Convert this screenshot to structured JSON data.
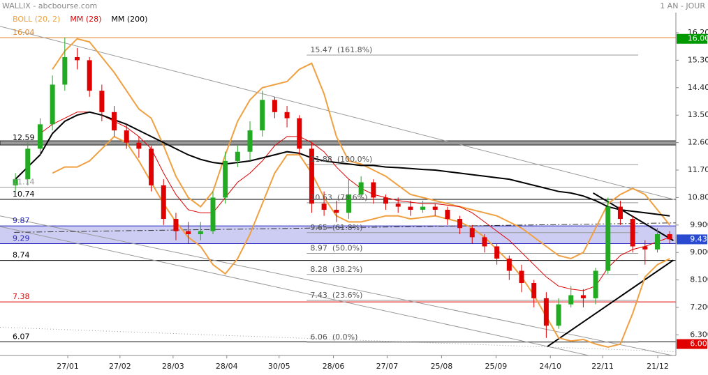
{
  "header": {
    "title": "WALLIX - abcbourse.com",
    "period": "1 AN - JOUR"
  },
  "chart_data": {
    "type": "candlestick",
    "xlim": [
      -1.25,
      53.5
    ],
    "ylim": [
      5.625,
      16.862
    ],
    "xticks": [
      {
        "value": 4.24,
        "label": "27/01"
      },
      {
        "value": 8.47,
        "label": "27/02"
      },
      {
        "value": 12.77,
        "label": "28/03"
      },
      {
        "value": 17.12,
        "label": "28/04"
      },
      {
        "value": 21.36,
        "label": "30/05"
      },
      {
        "value": 25.76,
        "label": "28/06"
      },
      {
        "value": 30.11,
        "label": "27/07"
      },
      {
        "value": 34.52,
        "label": "25/08"
      },
      {
        "value": 38.93,
        "label": "25/09"
      },
      {
        "value": 43.33,
        "label": "24/10"
      },
      {
        "value": 47.57,
        "label": "22/11"
      },
      {
        "value": 52.03,
        "label": "21/12"
      }
    ],
    "yticks": [
      {
        "value": 16.2,
        "label": "16.200"
      },
      {
        "value": 15.3,
        "label": "15.300"
      },
      {
        "value": 14.4,
        "label": "14.400"
      },
      {
        "value": 13.5,
        "label": "13.500"
      },
      {
        "value": 12.6,
        "label": "12.600"
      },
      {
        "value": 11.7,
        "label": "11.700"
      },
      {
        "value": 10.8,
        "label": "10.800"
      },
      {
        "value": 9.9,
        "label": "9.900"
      },
      {
        "value": 9.0,
        "label": "9.000"
      },
      {
        "value": 8.1,
        "label": "8.100"
      },
      {
        "value": 7.2,
        "label": "7.200"
      },
      {
        "value": 6.3,
        "label": "6.300"
      }
    ],
    "up_color": "#22aa22",
    "down_color": "#e00000",
    "open": [
      11.2,
      11.4,
      12.4,
      13.2,
      14.5,
      15.4,
      15.3,
      14.3,
      13.6,
      13.0,
      12.6,
      12.4,
      11.2,
      10.1,
      9.7,
      9.6,
      9.7,
      10.8,
      12.0,
      12.3,
      13.0,
      14.0,
      13.6,
      13.4,
      12.4,
      10.6,
      10.4,
      10.3,
      10.9,
      11.3,
      10.8,
      10.6,
      10.5,
      10.4,
      10.5,
      10.4,
      10.1,
      9.8,
      9.5,
      9.2,
      8.8,
      8.4,
      8.0,
      7.5,
      6.6,
      7.3,
      7.6,
      7.5,
      8.4,
      10.5,
      10.1,
      9.2,
      9.1,
      9.6
    ],
    "high": [
      11.6,
      12.6,
      13.4,
      14.8,
      16.04,
      15.7,
      15.4,
      14.5,
      13.8,
      13.2,
      12.8,
      12.5,
      11.4,
      10.3,
      10.0,
      10.0,
      11.0,
      12.3,
      12.5,
      13.3,
      14.3,
      14.1,
      13.8,
      13.5,
      12.6,
      11.0,
      10.7,
      11.4,
      11.5,
      11.4,
      10.9,
      10.8,
      10.7,
      10.7,
      10.6,
      10.5,
      10.2,
      9.9,
      9.6,
      9.3,
      8.9,
      8.6,
      8.1,
      7.7,
      7.5,
      7.9,
      7.8,
      8.5,
      10.8,
      10.7,
      10.2,
      9.4,
      9.8,
      9.7
    ],
    "low": [
      11.0,
      11.2,
      12.2,
      13.0,
      14.3,
      15.0,
      14.1,
      13.3,
      12.8,
      12.4,
      12.1,
      11.0,
      9.9,
      9.4,
      9.3,
      9.4,
      9.6,
      10.6,
      11.8,
      12.0,
      12.8,
      13.4,
      13.1,
      12.2,
      10.3,
      10.2,
      10.0,
      10.1,
      10.8,
      10.6,
      10.4,
      10.3,
      10.2,
      10.3,
      10.2,
      9.9,
      9.6,
      9.3,
      9.0,
      8.6,
      8.1,
      7.7,
      7.2,
      6.2,
      6.5,
      7.2,
      7.2,
      7.3,
      8.3,
      9.9,
      9.0,
      8.6,
      9.0,
      9.3
    ],
    "close": [
      11.4,
      12.4,
      13.2,
      14.5,
      15.4,
      15.3,
      14.3,
      13.6,
      13.0,
      12.6,
      12.4,
      11.2,
      10.1,
      9.7,
      9.6,
      9.7,
      10.8,
      12.0,
      12.3,
      13.0,
      14.0,
      13.6,
      13.4,
      12.4,
      10.6,
      10.4,
      10.3,
      10.9,
      11.3,
      10.8,
      10.6,
      10.5,
      10.4,
      10.5,
      10.4,
      10.1,
      9.8,
      9.5,
      9.2,
      8.8,
      8.4,
      8.0,
      7.5,
      6.6,
      7.3,
      7.6,
      7.5,
      8.4,
      10.5,
      10.1,
      9.2,
      9.1,
      9.6,
      9.43
    ],
    "series": [
      {
        "name": "BOLL (20, 2)",
        "color": "#f0a040",
        "upper": [
          null,
          null,
          null,
          15.0,
          15.6,
          16.0,
          15.9,
          15.4,
          14.9,
          14.3,
          13.7,
          13.4,
          12.5,
          11.5,
          10.8,
          10.5,
          11.0,
          12.2,
          13.3,
          14.0,
          14.4,
          14.5,
          14.6,
          15.0,
          15.2,
          14.2,
          12.8,
          12.0,
          11.9,
          11.7,
          11.5,
          11.2,
          10.9,
          10.8,
          10.7,
          10.6,
          10.5,
          10.4,
          10.3,
          10.2,
          10.0,
          9.8,
          9.5,
          9.2,
          8.9,
          8.8,
          9.0,
          9.8,
          10.6,
          10.9,
          11.1,
          10.9,
          10.4,
          9.9
        ],
        "lower": [
          null,
          null,
          null,
          11.6,
          11.8,
          11.8,
          12.0,
          12.4,
          12.8,
          12.6,
          12.0,
          11.3,
          10.6,
          10.0,
          9.5,
          9.2,
          8.6,
          8.3,
          8.8,
          9.6,
          10.6,
          11.6,
          12.2,
          12.2,
          11.6,
          10.8,
          10.2,
          10.0,
          10.0,
          10.1,
          10.2,
          10.2,
          10.1,
          10.15,
          10.2,
          10.1,
          10.0,
          9.8,
          9.5,
          9.1,
          8.7,
          8.2,
          7.6,
          6.9,
          6.2,
          6.1,
          6.15,
          6.0,
          5.9,
          6.0,
          7.0,
          8.2,
          8.6,
          8.8
        ]
      },
      {
        "name": "MM (28)",
        "color": "#e00000",
        "values": [
          null,
          null,
          12.9,
          13.2,
          13.4,
          13.6,
          13.6,
          13.5,
          13.3,
          13.1,
          12.8,
          12.4,
          11.6,
          10.9,
          10.4,
          10.3,
          10.3,
          10.8,
          11.3,
          11.6,
          12.0,
          12.5,
          12.8,
          12.8,
          12.6,
          12.3,
          11.8,
          11.4,
          11.1,
          10.9,
          10.8,
          10.7,
          10.65,
          10.6,
          10.6,
          10.55,
          10.5,
          10.3,
          10.0,
          9.7,
          9.4,
          9.0,
          8.6,
          8.2,
          7.9,
          7.8,
          7.75,
          7.9,
          8.5,
          8.9,
          9.1,
          9.2,
          9.35,
          9.5
        ]
      },
      {
        "name": "MM (200)",
        "color": "#000000",
        "values": [
          11.4,
          11.8,
          12.2,
          12.9,
          13.3,
          13.5,
          13.6,
          13.5,
          13.35,
          13.2,
          13.0,
          12.8,
          12.6,
          12.4,
          12.2,
          12.05,
          11.95,
          11.9,
          11.95,
          12.0,
          12.1,
          12.2,
          12.3,
          12.25,
          12.1,
          12.0,
          11.95,
          11.9,
          11.85,
          11.85,
          11.8,
          11.78,
          11.75,
          11.72,
          11.7,
          11.65,
          11.6,
          11.55,
          11.5,
          11.45,
          11.4,
          11.3,
          11.2,
          11.1,
          11.0,
          10.95,
          10.85,
          10.7,
          10.5,
          10.4,
          10.35,
          10.3,
          10.25,
          10.2
        ]
      }
    ],
    "levels": [
      {
        "value": 16.04,
        "label": "16.04",
        "color": "#e08a30"
      },
      {
        "value": 12.59,
        "label": "12.59",
        "color": "#000000",
        "style": "thick"
      },
      {
        "value": 11.14,
        "label": "11.14",
        "color": "#999999"
      },
      {
        "value": 10.74,
        "label": "10.74",
        "color": "#000000"
      },
      {
        "value": 9.87,
        "label": "9.87",
        "color": "#2a2ac0",
        "zone": true
      },
      {
        "value": 9.29,
        "label": "9.29",
        "color": "#2a2ac0",
        "zone": true
      },
      {
        "value": 8.74,
        "label": "8.74",
        "color": "#000000"
      },
      {
        "value": 7.38,
        "label": "7.38",
        "color": "#e00000"
      },
      {
        "value": 6.07,
        "label": "6.07",
        "color": "#000000"
      }
    ],
    "zone_fill": "#c4c4f2",
    "fib_x": [
      23.6,
      50.45
    ],
    "fibonacci": [
      {
        "value": 15.47,
        "label": "15.47  (161.8%)"
      },
      {
        "value": 11.88,
        "label": "11.88  (100.0%)"
      },
      {
        "value": 10.63,
        "label": "10.63  (78.6%)"
      },
      {
        "value": 9.65,
        "label": "9.65  (61.8%)"
      },
      {
        "value": 8.97,
        "label": "8.97  (50.0%)"
      },
      {
        "value": 8.28,
        "label": "8.28  (38.2%)"
      },
      {
        "value": 7.43,
        "label": "7.43  (23.6%)"
      },
      {
        "value": 6.06,
        "label": "6.06  (0.0%)"
      }
    ],
    "trend_lines": [
      {
        "from": [
          -1.25,
          16.41
        ],
        "to": [
          53.5,
          10.72
        ],
        "color": "#999999"
      },
      {
        "from": [
          -1.25,
          10.2
        ],
        "to": [
          53.5,
          5.6
        ],
        "color": "#999999"
      },
      {
        "from": [
          -1.25,
          9.85
        ],
        "to": [
          53.5,
          5.0
        ],
        "color": "#999999"
      },
      {
        "from": [
          -1.25,
          6.55
        ],
        "to": [
          53.5,
          5.75
        ],
        "color": "#999999",
        "style": "dotted"
      },
      {
        "from": [
          -0.1,
          9.66
        ],
        "to": [
          53.5,
          9.97
        ],
        "color": "#333333",
        "style": "dashdot"
      },
      {
        "from": [
          43.1,
          5.92
        ],
        "to": [
          53.3,
          8.75
        ],
        "color": "#000000",
        "style": "bold"
      },
      {
        "from": [
          46.8,
          10.95
        ],
        "to": [
          53.3,
          9.39
        ],
        "color": "#000000",
        "style": "bold"
      }
    ],
    "price_tags": [
      {
        "value": 16.0,
        "label": "16.000",
        "color": "#009900"
      },
      {
        "value": 9.43,
        "label": "9.430",
        "color": "#2a4bd0"
      },
      {
        "value": 6.0,
        "label": "6.000",
        "color": "#e00000"
      }
    ]
  }
}
